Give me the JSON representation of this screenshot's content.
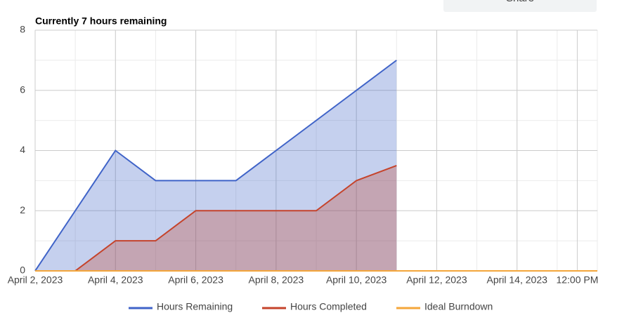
{
  "share_button": "Share",
  "chart_data": {
    "type": "area",
    "title": "Currently 7 hours remaining",
    "series": [
      {
        "name": "Hours Remaining",
        "color": "#3f63c8",
        "x": [
          "2023-04-02",
          "2023-04-03",
          "2023-04-04",
          "2023-04-05",
          "2023-04-06",
          "2023-04-07",
          "2023-04-08",
          "2023-04-09",
          "2023-04-10",
          "2023-04-11"
        ],
        "values": [
          0,
          2,
          4,
          3,
          3,
          3,
          4,
          5,
          6,
          7
        ]
      },
      {
        "name": "Hours Completed",
        "color": "#c5432b",
        "x": [
          "2023-04-02",
          "2023-04-03",
          "2023-04-04",
          "2023-04-05",
          "2023-04-06",
          "2023-04-07",
          "2023-04-08",
          "2023-04-09",
          "2023-04-10",
          "2023-04-11"
        ],
        "values": [
          0,
          0,
          1,
          1,
          2,
          2,
          2,
          2,
          3,
          3.5
        ]
      },
      {
        "name": "Ideal Burndown",
        "color": "#f4a63a",
        "x": [
          "2023-04-02",
          "2023-04-16"
        ],
        "values": [
          0,
          0
        ]
      }
    ],
    "xlim": [
      "2023-04-02",
      "2023-04-16"
    ],
    "xticks": [
      {
        "value": "2023-04-02",
        "label": "April 2, 2023"
      },
      {
        "value": "2023-04-04",
        "label": "April 4, 2023"
      },
      {
        "value": "2023-04-06",
        "label": "April 6, 2023"
      },
      {
        "value": "2023-04-08",
        "label": "April 8, 2023"
      },
      {
        "value": "2023-04-10",
        "label": "April 10, 2023"
      },
      {
        "value": "2023-04-12",
        "label": "April 12, 2023"
      },
      {
        "value": "2023-04-14",
        "label": "April 14, 2023"
      },
      {
        "value": "2023-04-15T12:00",
        "label": "12:00 PM"
      }
    ],
    "ylim": [
      0,
      8
    ],
    "yticks": [
      0,
      2,
      4,
      6,
      8
    ],
    "grid": true,
    "legend": "bottom"
  }
}
